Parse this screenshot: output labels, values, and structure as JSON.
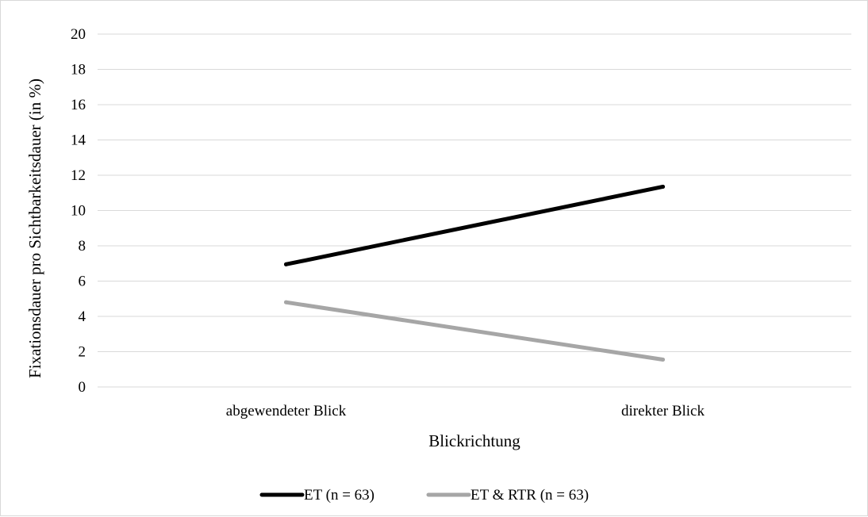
{
  "chart_data": {
    "type": "line",
    "categories": [
      "abgewendeter Blick",
      "direkter Blick"
    ],
    "series": [
      {
        "name": "ET (n = 63)",
        "values": [
          6.95,
          11.35
        ],
        "color": "#000000"
      },
      {
        "name": "ET & RTR (n = 63)",
        "values": [
          4.8,
          1.55
        ],
        "color": "#a6a6a6"
      }
    ],
    "title": "",
    "xlabel": "Blickrichtung",
    "ylabel": "Fixationsdauer pro Sichtbarkeitsdauer (in %)",
    "ylim": [
      0,
      20
    ],
    "yticks": [
      "0",
      "2",
      "4",
      "6",
      "8",
      "10",
      "12",
      "14",
      "16",
      "18",
      "20"
    ],
    "grid": true,
    "gridline_color": "#d9d9d9",
    "legend_position": "bottom"
  }
}
